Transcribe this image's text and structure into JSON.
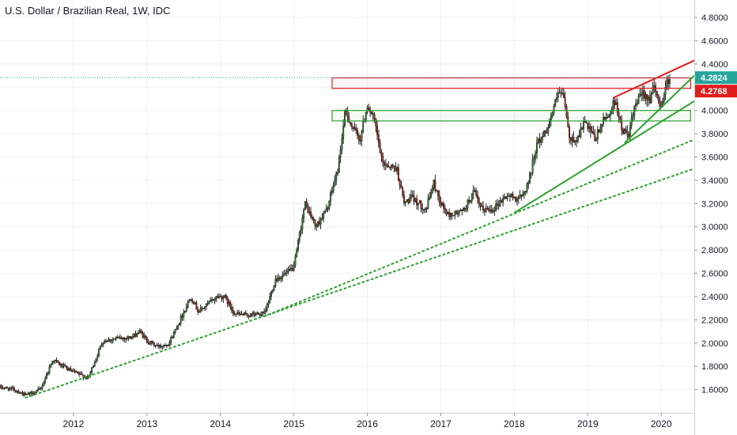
{
  "chart_data": {
    "type": "candlestick",
    "title": "U.S. Dollar / Brazilian Real, 1W, IDC",
    "xlabel": "",
    "ylabel": "",
    "x_range": [
      2011.0,
      2020.45
    ],
    "ylim": [
      1.4,
      4.95
    ],
    "y_ticks": [
      1.6,
      1.8,
      2.0,
      2.2,
      2.4,
      2.6,
      2.8,
      3.0,
      3.2,
      3.4,
      3.6,
      3.8,
      4.0,
      4.2,
      4.4,
      4.6,
      4.8
    ],
    "y_tick_labels": [
      "1.6000",
      "1.8000",
      "2.0000",
      "2.2000",
      "2.4000",
      "2.6000",
      "2.8000",
      "3.0000",
      "3.2000",
      "3.4000",
      "3.6000",
      "3.8000",
      "4.0000",
      "4.2000",
      "4.4000",
      "4.6000",
      "4.8000"
    ],
    "x_ticks": [
      2012,
      2013,
      2014,
      2015,
      2016,
      2017,
      2018,
      2019,
      2020
    ],
    "x_tick_labels": [
      "2012",
      "2013",
      "2014",
      "2015",
      "2016",
      "2017",
      "2018",
      "2019",
      "2020"
    ],
    "grid": true,
    "price_path": [
      [
        2011.0,
        1.62
      ],
      [
        2011.2,
        1.6
      ],
      [
        2011.35,
        1.55
      ],
      [
        2011.55,
        1.6
      ],
      [
        2011.72,
        1.86
      ],
      [
        2011.85,
        1.8
      ],
      [
        2012.0,
        1.75
      ],
      [
        2012.2,
        1.7
      ],
      [
        2012.4,
        2.02
      ],
      [
        2012.6,
        2.04
      ],
      [
        2012.8,
        2.05
      ],
      [
        2012.9,
        2.1
      ],
      [
        2013.0,
        2.02
      ],
      [
        2013.15,
        1.97
      ],
      [
        2013.3,
        2.0
      ],
      [
        2013.45,
        2.2
      ],
      [
        2013.6,
        2.4
      ],
      [
        2013.7,
        2.27
      ],
      [
        2013.8,
        2.32
      ],
      [
        2013.95,
        2.4
      ],
      [
        2014.05,
        2.4
      ],
      [
        2014.2,
        2.25
      ],
      [
        2014.35,
        2.24
      ],
      [
        2014.5,
        2.25
      ],
      [
        2014.6,
        2.25
      ],
      [
        2014.75,
        2.55
      ],
      [
        2014.9,
        2.6
      ],
      [
        2015.0,
        2.65
      ],
      [
        2015.15,
        3.2
      ],
      [
        2015.3,
        3.0
      ],
      [
        2015.45,
        3.15
      ],
      [
        2015.6,
        3.5
      ],
      [
        2015.7,
        4.0
      ],
      [
        2015.8,
        3.85
      ],
      [
        2015.9,
        3.75
      ],
      [
        2016.0,
        4.05
      ],
      [
        2016.1,
        3.9
      ],
      [
        2016.2,
        3.55
      ],
      [
        2016.4,
        3.5
      ],
      [
        2016.5,
        3.2
      ],
      [
        2016.6,
        3.25
      ],
      [
        2016.8,
        3.15
      ],
      [
        2016.9,
        3.38
      ],
      [
        2017.0,
        3.2
      ],
      [
        2017.1,
        3.1
      ],
      [
        2017.3,
        3.13
      ],
      [
        2017.45,
        3.3
      ],
      [
        2017.55,
        3.15
      ],
      [
        2017.7,
        3.15
      ],
      [
        2017.9,
        3.27
      ],
      [
        2018.0,
        3.25
      ],
      [
        2018.1,
        3.25
      ],
      [
        2018.2,
        3.4
      ],
      [
        2018.3,
        3.7
      ],
      [
        2018.45,
        3.85
      ],
      [
        2018.6,
        4.15
      ],
      [
        2018.68,
        4.1
      ],
      [
        2018.75,
        3.75
      ],
      [
        2018.85,
        3.75
      ],
      [
        2018.95,
        3.9
      ],
      [
        2019.0,
        3.85
      ],
      [
        2019.1,
        3.75
      ],
      [
        2019.2,
        3.9
      ],
      [
        2019.3,
        3.98
      ],
      [
        2019.38,
        4.1
      ],
      [
        2019.45,
        3.85
      ],
      [
        2019.55,
        3.78
      ],
      [
        2019.65,
        4.05
      ],
      [
        2019.75,
        4.15
      ],
      [
        2019.85,
        4.1
      ],
      [
        2019.9,
        4.2
      ],
      [
        2019.95,
        4.1
      ],
      [
        2020.0,
        4.05
      ],
      [
        2020.08,
        4.25
      ],
      [
        2020.12,
        4.28
      ]
    ],
    "horizontal_line": {
      "value": 4.2824,
      "color": "#26a69a"
    },
    "price_labels": [
      {
        "value": 4.2824,
        "text": "4.2824",
        "color": "#26a69a"
      },
      {
        "value": 4.2768,
        "text": "4.2768",
        "color": "#e31c1c"
      }
    ],
    "rectangles": [
      {
        "x0": 2015.52,
        "x1": 2020.4,
        "y0": 4.19,
        "y1": 4.28,
        "color": "#e31c1c",
        "fill": "rgba(227,28,28,0.04)"
      },
      {
        "x0": 2015.52,
        "x1": 2020.4,
        "y0": 3.91,
        "y1": 4.0,
        "color": "#2ca02c",
        "fill": "rgba(44,160,44,0.05)"
      }
    ],
    "trend_lines": [
      {
        "x0": 2011.35,
        "y0": 1.53,
        "x1": 2020.45,
        "y1": 3.5,
        "color": "#2ca02c",
        "style": "dotted"
      },
      {
        "x0": 2014.6,
        "y0": 2.23,
        "x1": 2020.45,
        "y1": 3.75,
        "color": "#2ca02c",
        "style": "dotted"
      },
      {
        "x0": 2018.0,
        "y0": 3.12,
        "x1": 2020.45,
        "y1": 4.08,
        "color": "#2ca02c",
        "style": "solid"
      },
      {
        "x0": 2019.5,
        "y0": 3.72,
        "x1": 2020.45,
        "y1": 4.3,
        "color": "#2ca02c",
        "style": "solid"
      },
      {
        "x0": 2019.35,
        "y0": 4.11,
        "x1": 2020.45,
        "y1": 4.43,
        "color": "#e31c1c",
        "style": "solid"
      }
    ],
    "colors": {
      "up": "#2e7d32",
      "down": "#b71c1c",
      "wick": "#222222",
      "grid": "#eef1f5",
      "axis_text": "#131722"
    }
  }
}
